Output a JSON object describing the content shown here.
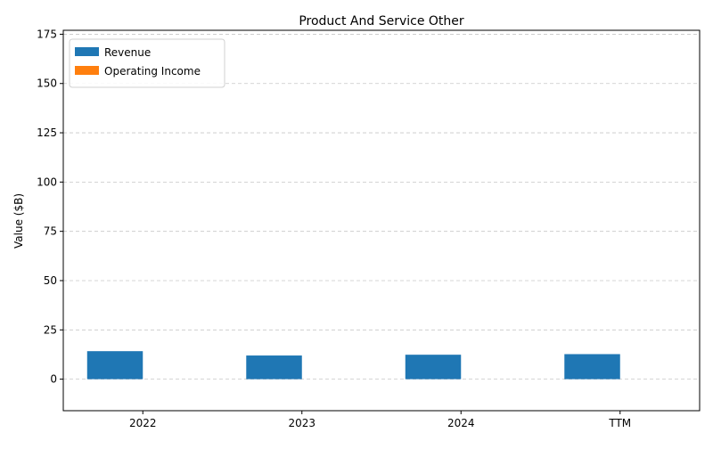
{
  "chart_data": {
    "type": "bar",
    "title": "Product And Service Other",
    "xlabel": "",
    "ylabel": "Value ($B)",
    "categories": [
      "2022",
      "2023",
      "2024",
      "TTM"
    ],
    "series": [
      {
        "name": "Revenue",
        "values": [
          14.2,
          12.0,
          12.4,
          12.7
        ],
        "color": "#1f77b4"
      },
      {
        "name": "Operating Income",
        "values": [
          0,
          0,
          0,
          0
        ],
        "color": "#ff7f0e"
      }
    ],
    "ylim": [
      -16,
      177
    ],
    "yticks": [
      0,
      25,
      50,
      75,
      100,
      125,
      150,
      175
    ],
    "grid": "horizontal-dashed",
    "legend": "top-left"
  }
}
